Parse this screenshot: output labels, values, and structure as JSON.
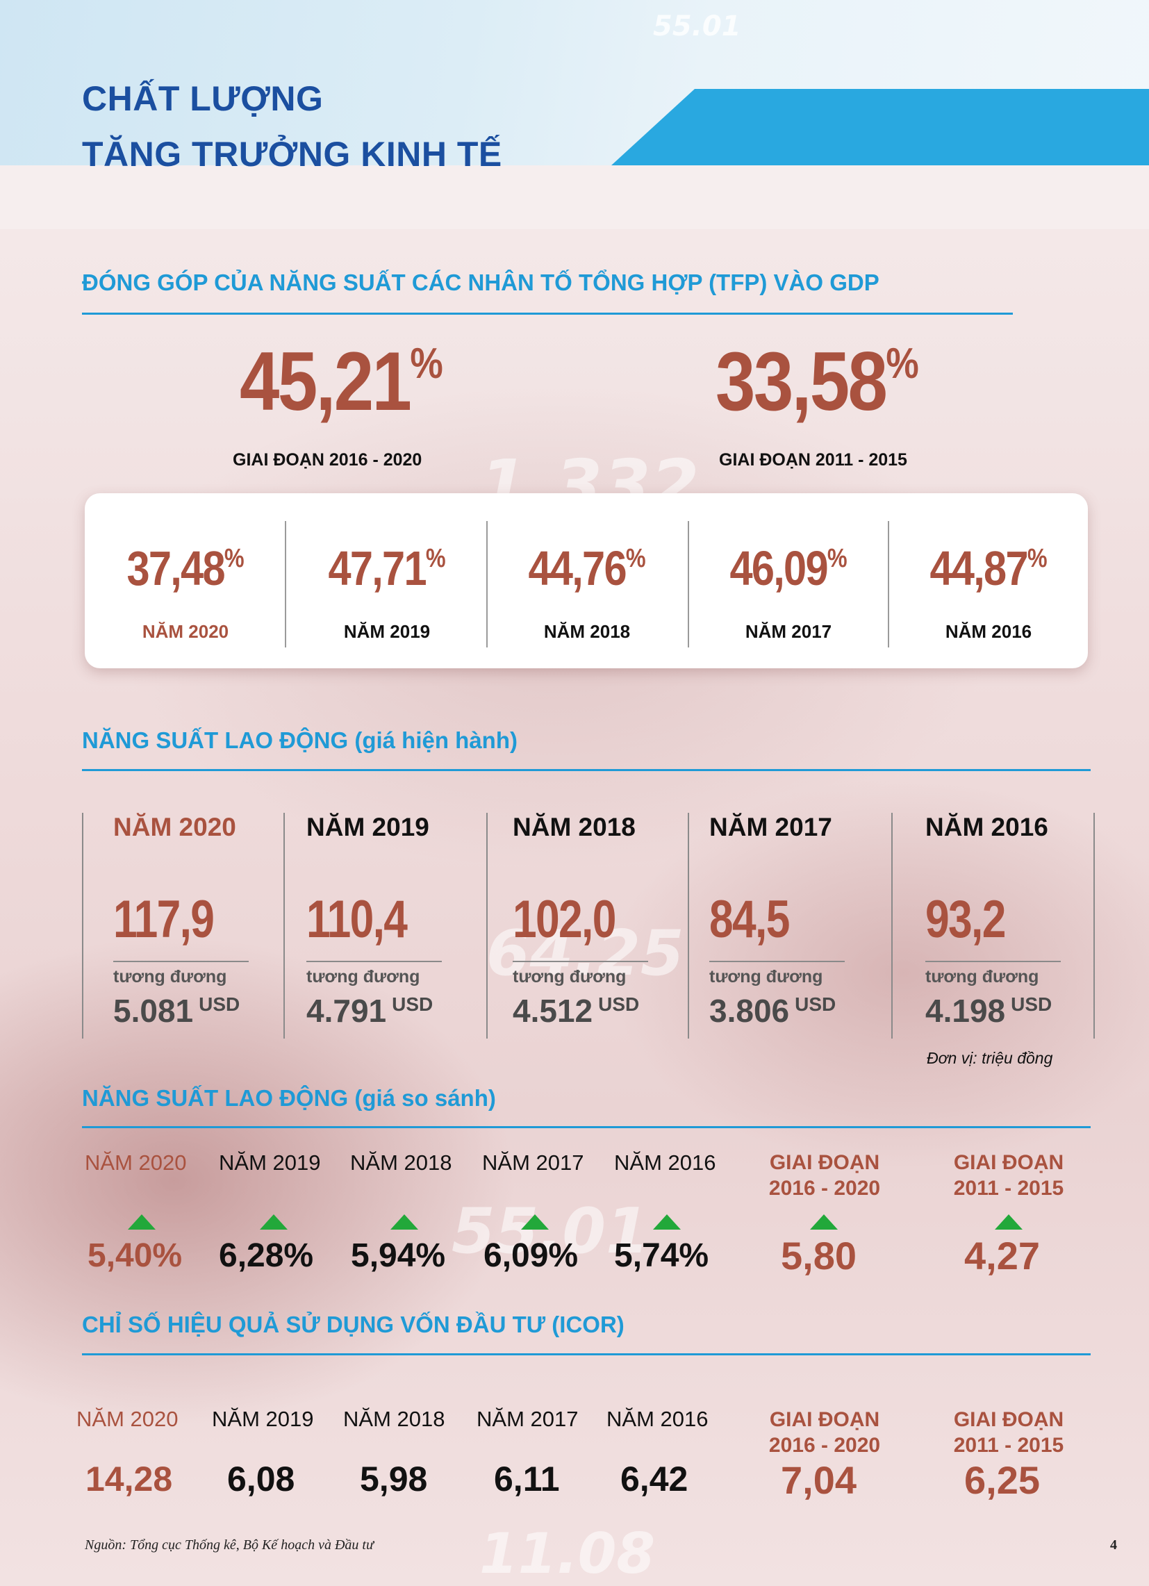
{
  "header": {
    "title_line1": "CHẤT LƯỢNG",
    "title_line2": "TĂNG TRƯỞNG KINH TẾ",
    "bg_number": "55.01",
    "accent_color": "#29a8e0",
    "title_color": "#1b4fa0"
  },
  "background_numbers": [
    "1.332",
    "64.25",
    "55.01",
    "11.08"
  ],
  "tfp": {
    "section_title": "ĐÓNG GÓP CỦA NĂNG SUẤT CÁC NHÂN TỐ TỔNG HỢP (TFP) VÀO GDP",
    "period_a": {
      "value": "45,21",
      "unit": "%",
      "label": "GIAI ĐOẠN 2016 - 2020"
    },
    "period_b": {
      "value": "33,58",
      "unit": "%",
      "label": "GIAI ĐOẠN 2011 - 2015"
    },
    "years": [
      {
        "value": "37,48",
        "unit": "%",
        "label": "NĂM 2020"
      },
      {
        "value": "47,71",
        "unit": "%",
        "label": "NĂM 2019"
      },
      {
        "value": "44,76",
        "unit": "%",
        "label": "NĂM 2018"
      },
      {
        "value": "46,09",
        "unit": "%",
        "label": "NĂM 2017"
      },
      {
        "value": "44,87",
        "unit": "%",
        "label": "NĂM 2016"
      }
    ]
  },
  "labor_current": {
    "section_title": "NĂNG SUẤT LAO ĐỘNG (giá hiện hành)",
    "equiv_label": "tương đương",
    "usd_unit": "USD",
    "unit_note": "Đơn vị: triệu đồng",
    "years": [
      {
        "label": "NĂM 2020",
        "value": "117,9",
        "usd": "5.081"
      },
      {
        "label": "NĂM 2019",
        "value": "110,4",
        "usd": "4.791"
      },
      {
        "label": "NĂM 2018",
        "value": "102,0",
        "usd": "4.512"
      },
      {
        "label": "NĂM 2017",
        "value": "84,5",
        "usd": "3.806"
      },
      {
        "label": "NĂM 2016",
        "value": "93,2",
        "usd": "4.198"
      }
    ]
  },
  "labor_constant": {
    "section_title": "NĂNG SUẤT LAO ĐỘNG (giá so sánh)",
    "years": [
      {
        "label": "NĂM 2020",
        "value": "5,40%"
      },
      {
        "label": "NĂM 2019",
        "value": "6,28%"
      },
      {
        "label": "NĂM 2018",
        "value": "5,94%"
      },
      {
        "label": "NĂM 2017",
        "value": "6,09%"
      },
      {
        "label": "NĂM 2016",
        "value": "5,74%"
      }
    ],
    "periods": [
      {
        "line1": "GIAI ĐOẠN",
        "line2": "2016 - 2020",
        "value": "5,80"
      },
      {
        "line1": "GIAI ĐOẠN",
        "line2": "2011 - 2015",
        "value": "4,27"
      }
    ],
    "arrow_color": "#22a83a"
  },
  "icor": {
    "section_title": "CHỈ SỐ HIỆU QUẢ SỬ DỤNG VỐN ĐẦU TƯ (ICOR)",
    "years": [
      {
        "label": "NĂM 2020",
        "value": "14,28"
      },
      {
        "label": "NĂM 2019",
        "value": "6,08"
      },
      {
        "label": "NĂM 2018",
        "value": "5,98"
      },
      {
        "label": "NĂM 2017",
        "value": "6,11"
      },
      {
        "label": "NĂM 2016",
        "value": "6,42"
      }
    ],
    "periods": [
      {
        "line1": "GIAI ĐOẠN",
        "line2": "2016 - 2020",
        "value": "7,04"
      },
      {
        "line1": "GIAI ĐOẠN",
        "line2": "2011 - 2015",
        "value": "6,25"
      }
    ]
  },
  "footer": {
    "source": "Nguồn: Tổng cục Thống kê, Bộ Kế hoạch và Đầu tư",
    "page_number": "4"
  },
  "colors": {
    "highlight": "#a9523f",
    "section": "#1f9ad6"
  }
}
